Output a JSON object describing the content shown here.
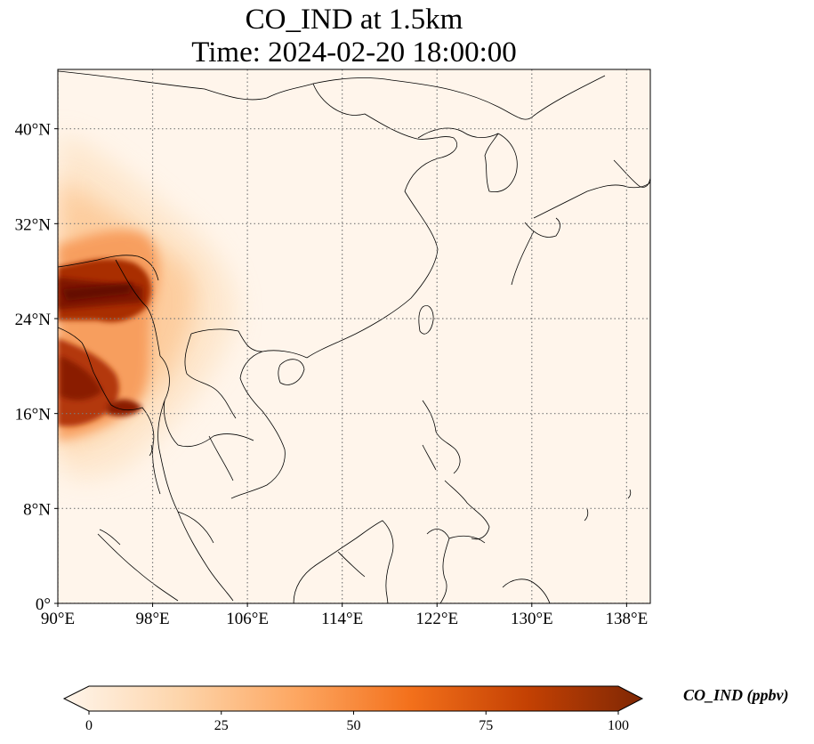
{
  "title": "CO_IND at 1.5km",
  "subtitle": "Time: 2024-02-20 18:00:00",
  "map": {
    "extent": {
      "lon": [
        90,
        140
      ],
      "lat": [
        0,
        45
      ]
    },
    "lon_ticks": [
      {
        "value": 90,
        "label": "90°E"
      },
      {
        "value": 98,
        "label": "98°E"
      },
      {
        "value": 106,
        "label": "106°E"
      },
      {
        "value": 114,
        "label": "114°E"
      },
      {
        "value": 122,
        "label": "122°E"
      },
      {
        "value": 130,
        "label": "130°E"
      },
      {
        "value": 138,
        "label": "138°E"
      }
    ],
    "lat_ticks": [
      {
        "value": 0,
        "label": "0°"
      },
      {
        "value": 8,
        "label": "8°N"
      },
      {
        "value": 16,
        "label": "16°N"
      },
      {
        "value": 24,
        "label": "24°N"
      },
      {
        "value": 32,
        "label": "32°N"
      },
      {
        "value": 40,
        "label": "40°N"
      }
    ],
    "gridlines": "dotted",
    "background_color": "#fff5eb",
    "coastline_color": "#000000"
  },
  "colorbar": {
    "label": "CO_IND (ppbv)",
    "min": 0,
    "max": 100,
    "ticks": [
      {
        "value": 0,
        "label": "0"
      },
      {
        "value": 25,
        "label": "25"
      },
      {
        "value": 50,
        "label": "50"
      },
      {
        "value": 75,
        "label": "75"
      },
      {
        "value": 100,
        "label": "100"
      }
    ],
    "extend": "both",
    "colormap": [
      "#fff5eb",
      "#fdd5ab",
      "#fda762",
      "#f3701b",
      "#c44103",
      "#7f2704"
    ]
  }
}
